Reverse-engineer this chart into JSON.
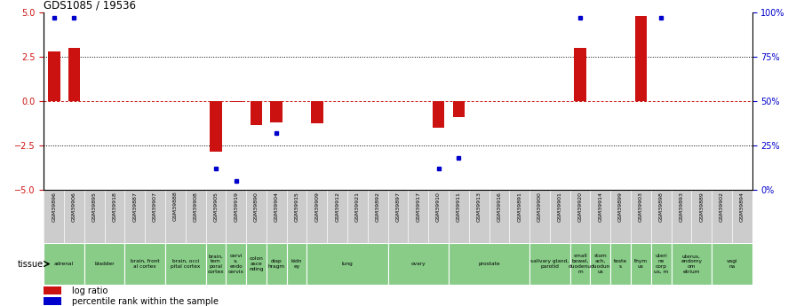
{
  "title": "GDS1085 / 19536",
  "samples": [
    "GSM39896",
    "GSM39906",
    "GSM39895",
    "GSM39918",
    "GSM39887",
    "GSM39907",
    "GSM39888",
    "GSM39908",
    "GSM39905",
    "GSM39919",
    "GSM39890",
    "GSM39904",
    "GSM39915",
    "GSM39909",
    "GSM39912",
    "GSM39921",
    "GSM39892",
    "GSM39897",
    "GSM39917",
    "GSM39910",
    "GSM39911",
    "GSM39913",
    "GSM39916",
    "GSM39891",
    "GSM39900",
    "GSM39901",
    "GSM39920",
    "GSM39914",
    "GSM39899",
    "GSM39903",
    "GSM39898",
    "GSM39893",
    "GSM39889",
    "GSM39902",
    "GSM39894"
  ],
  "log_ratio": [
    2.8,
    3.0,
    0.0,
    0.0,
    0.0,
    0.0,
    0.0,
    0.0,
    -2.85,
    -0.05,
    -1.35,
    -1.2,
    0.0,
    -1.25,
    0.0,
    0.0,
    0.0,
    0.0,
    0.0,
    -1.5,
    -0.9,
    0.0,
    0.0,
    0.0,
    0.0,
    0.0,
    3.0,
    0.0,
    0.0,
    4.8,
    0.0,
    0.0,
    0.0,
    0.0,
    0.0
  ],
  "pct_rank": [
    97,
    97,
    null,
    null,
    null,
    null,
    null,
    null,
    12,
    5,
    null,
    32,
    null,
    null,
    null,
    null,
    null,
    null,
    null,
    12,
    18,
    null,
    null,
    null,
    null,
    null,
    97,
    null,
    null,
    null,
    97,
    null,
    null,
    null,
    null
  ],
  "tissue_groups": [
    {
      "label": "adrenal",
      "start": 0,
      "end": 2
    },
    {
      "label": "bladder",
      "start": 2,
      "end": 4
    },
    {
      "label": "brain, front\nal cortex",
      "start": 4,
      "end": 6
    },
    {
      "label": "brain, occi\npital cortex",
      "start": 6,
      "end": 8
    },
    {
      "label": "brain,\ntem\nporal\ncortex",
      "start": 8,
      "end": 9
    },
    {
      "label": "cervi\nx,\nendo\ncervix",
      "start": 9,
      "end": 10
    },
    {
      "label": "colon\nasce\nnding",
      "start": 10,
      "end": 11
    },
    {
      "label": "diap\nhragm",
      "start": 11,
      "end": 12
    },
    {
      "label": "kidn\ney",
      "start": 12,
      "end": 13
    },
    {
      "label": "lung",
      "start": 13,
      "end": 17
    },
    {
      "label": "ovary",
      "start": 17,
      "end": 20
    },
    {
      "label": "prostate",
      "start": 20,
      "end": 24
    },
    {
      "label": "salivary gland,\nparotid",
      "start": 24,
      "end": 26
    },
    {
      "label": "small\nbowel,\nduodenu\nm",
      "start": 26,
      "end": 27
    },
    {
      "label": "stom\nach,\nduodun\nus",
      "start": 27,
      "end": 28
    },
    {
      "label": "teste\ns",
      "start": 28,
      "end": 29
    },
    {
      "label": "thym\nus",
      "start": 29,
      "end": 30
    },
    {
      "label": "uteri\nne\ncorp\nus, m",
      "start": 30,
      "end": 31
    },
    {
      "label": "uterus,\nendomy\nom\netrium",
      "start": 31,
      "end": 33
    },
    {
      "label": "vagi\nna",
      "start": 33,
      "end": 35
    }
  ],
  "ylim": [
    -5,
    5
  ],
  "yticks_left": [
    -5,
    -2.5,
    0,
    2.5,
    5
  ],
  "yticks_right": [
    0,
    25,
    50,
    75,
    100
  ],
  "bar_color_red": "#cc1111",
  "dot_color_blue": "#0000cc",
  "tissue_color_green": "#88cc88",
  "sample_bg_color": "#cccccc",
  "legend_red": "#cc1111",
  "legend_blue": "#0000cc"
}
